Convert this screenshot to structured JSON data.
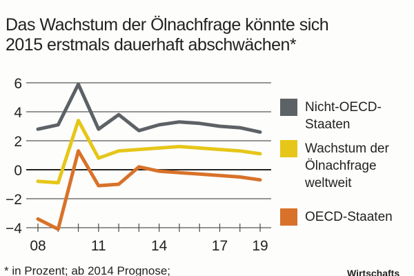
{
  "chart_data": {
    "type": "line",
    "title": "Das Wachstum der Ölnachfrage könnte sich 2015 erstmals dauerhaft abschwächen*",
    "x": [
      2008,
      2009,
      2010,
      2011,
      2012,
      2013,
      2014,
      2015,
      2016,
      2017,
      2018,
      2019
    ],
    "x_tick_labels": [
      "08",
      "11",
      "14",
      "17",
      "19"
    ],
    "x_tick_values": [
      2008,
      2011,
      2014,
      2017,
      2019
    ],
    "y_ticks": [
      6,
      4,
      2,
      0,
      -2,
      -4
    ],
    "ylim": [
      -4,
      6
    ],
    "grid": true,
    "legend_placement": "right",
    "series": [
      {
        "name": "Nicht-OECD-Staaten",
        "legend_lines": [
          "Nicht-OECD-",
          "Staaten"
        ],
        "color": "#5d6266",
        "values": [
          2.8,
          3.1,
          5.9,
          2.8,
          3.8,
          2.7,
          3.1,
          3.3,
          3.2,
          3.0,
          2.9,
          2.6
        ]
      },
      {
        "name": "Wachstum der Ölnachfrage weltweit",
        "legend_lines": [
          "Wachstum der",
          "Ölnachfrage",
          "weltweit"
        ],
        "color": "#e6c619",
        "values": [
          -0.8,
          -0.9,
          3.4,
          0.8,
          1.3,
          1.4,
          1.5,
          1.6,
          1.5,
          1.4,
          1.3,
          1.1
        ]
      },
      {
        "name": "OECD-Staaten",
        "legend_lines": [
          "OECD-Staaten"
        ],
        "color": "#d8722a",
        "values": [
          -3.4,
          -4.1,
          1.3,
          -1.1,
          -1.0,
          0.2,
          -0.1,
          -0.2,
          -0.3,
          -0.4,
          -0.5,
          -0.7
        ]
      }
    ]
  },
  "title_lines": [
    "Das Wachstum der Ölnachfrage könnte sich",
    "2015 erstmals dauerhaft abschwächen*"
  ],
  "footnote": "* in Prozent; ab 2014 Prognose;",
  "source": "Wirtschafts"
}
